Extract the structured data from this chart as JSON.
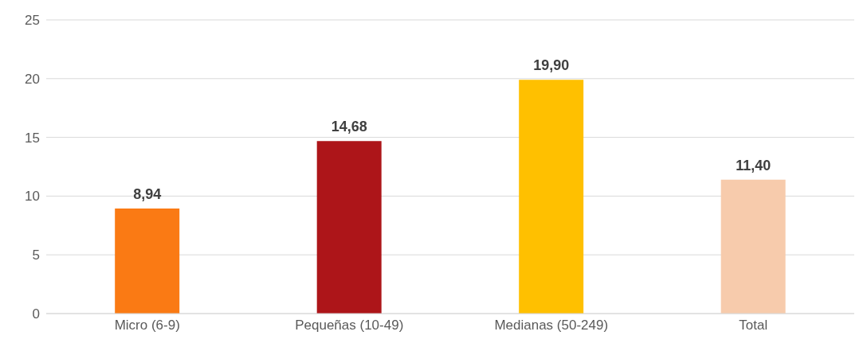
{
  "chart_data": {
    "type": "bar",
    "categories": [
      "Micro (6-9)",
      "Pequeñas (10-49)",
      "Medianas (50-249)",
      "Total"
    ],
    "values": [
      8.94,
      14.68,
      19.9,
      11.4
    ],
    "colors": [
      "#fa7a14",
      "#ad1519",
      "#ffc000",
      "#f7cbac"
    ],
    "value_labels": [
      "8,94",
      "14,68",
      "19,90",
      "11,40"
    ],
    "ylim": [
      0,
      25
    ],
    "yticks": [
      0,
      5,
      10,
      15,
      20,
      25
    ],
    "grid": "y"
  }
}
